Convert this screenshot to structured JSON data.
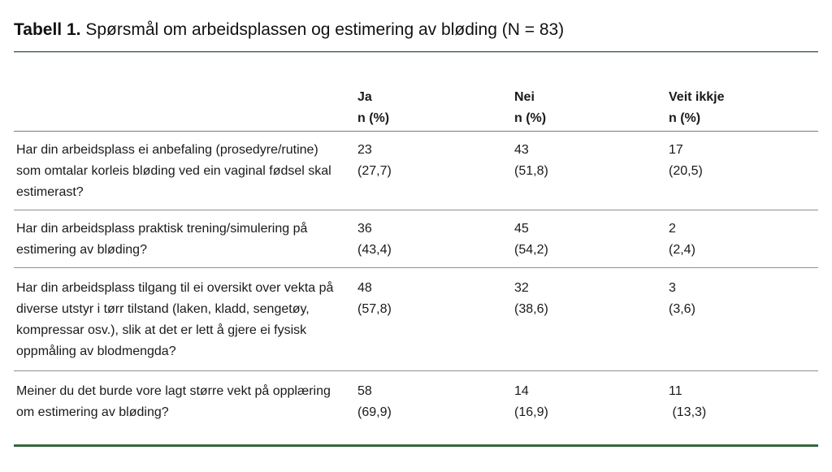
{
  "title": {
    "prefix": "Tabell 1.",
    "text": "Spørsmål om arbeidsplassen og estimering av bløding (N = 83)"
  },
  "table": {
    "header": {
      "col_ja": {
        "label": "Ja",
        "sub": "n (%)"
      },
      "col_nei": {
        "label": "Nei",
        "sub": "n (%)"
      },
      "col_veit": {
        "label": "Veit ikkje",
        "sub": "n (%)"
      }
    },
    "rows": [
      {
        "question": "Har din arbeidsplass ei anbefaling (prosedyre/rutine) som omtalar korleis bløding ved ein vaginal fødsel skal estimerast?",
        "ja_n": "23",
        "ja_pct": "(27,7)",
        "nei_n": "43",
        "nei_pct": "(51,8)",
        "veit_n": "17",
        "veit_pct": "(20,5)"
      },
      {
        "question": "Har din arbeidsplass praktisk trening/simulering på estimering av bløding?",
        "ja_n": "36",
        "ja_pct": "(43,4)",
        "nei_n": "45",
        "nei_pct": "(54,2)",
        "veit_n": "2",
        "veit_pct": "(2,4)"
      },
      {
        "question": "Har din arbeidsplass tilgang til ei oversikt over vekta på diverse utstyr i tørr tilstand (laken, kladd, sengetøy, kompressar osv.), slik at det er lett å gjere ei fysisk oppmåling av blodmengda?",
        "ja_n": "48",
        "ja_pct": "(57,8)",
        "nei_n": "32",
        "nei_pct": "(38,6)",
        "veit_n": "3",
        "veit_pct": "(3,6)"
      },
      {
        "question": "Meiner du det burde vore lagt større vekt på opplæring om estimering av bløding?",
        "ja_n": "58",
        "ja_pct": "(69,9)",
        "nei_n": "14",
        "nei_pct": "(16,9)",
        "veit_n": "11",
        "veit_pct": " (13,3)"
      }
    ]
  },
  "colors": {
    "accent_green": "#35663e",
    "divider_gray": "#8f8f8f"
  }
}
